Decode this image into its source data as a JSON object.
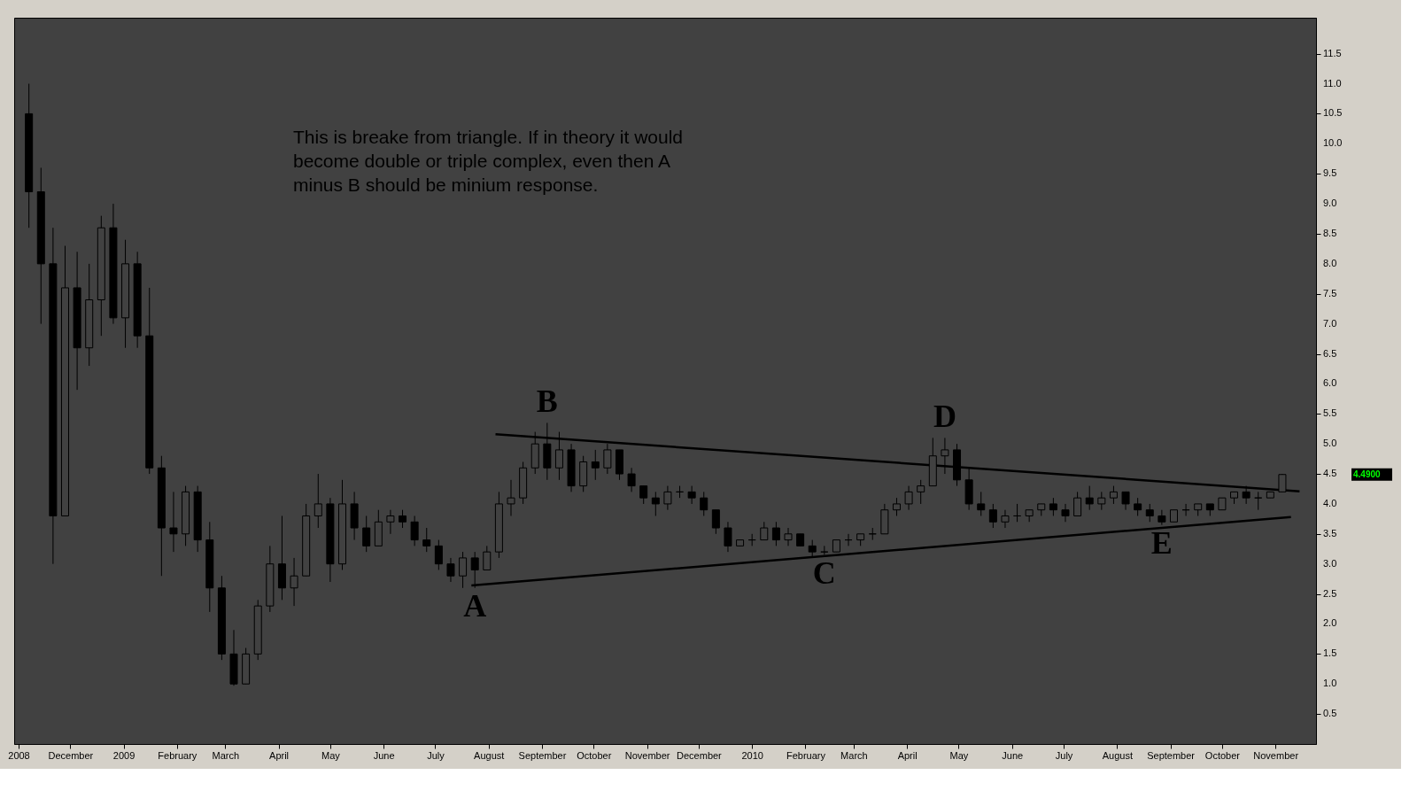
{
  "chart_data": {
    "type": "candlestick",
    "x": [
      "2008-11-07",
      "2008-11-14",
      "2008-11-21",
      "2008-11-28",
      "2008-12-05",
      "2008-12-12",
      "2008-12-19",
      "2008-12-26",
      "2009-01-02",
      "2009-01-09",
      "2009-01-16",
      "2009-01-23",
      "2009-01-30",
      "2009-02-06",
      "2009-02-13",
      "2009-02-20",
      "2009-02-27",
      "2009-03-06",
      "2009-03-13",
      "2009-03-20",
      "2009-03-27",
      "2009-04-03",
      "2009-04-10",
      "2009-04-17",
      "2009-04-24",
      "2009-05-01",
      "2009-05-08",
      "2009-05-15",
      "2009-05-22",
      "2009-05-29",
      "2009-06-05",
      "2009-06-12",
      "2009-06-19",
      "2009-06-26",
      "2009-07-03",
      "2009-07-10",
      "2009-07-17",
      "2009-07-24",
      "2009-07-31",
      "2009-08-07",
      "2009-08-14",
      "2009-08-21",
      "2009-08-28",
      "2009-09-04",
      "2009-09-11",
      "2009-09-18",
      "2009-09-25",
      "2009-10-02",
      "2009-10-09",
      "2009-10-16",
      "2009-10-23",
      "2009-10-30",
      "2009-11-06",
      "2009-11-13",
      "2009-11-20",
      "2009-11-27",
      "2009-12-04",
      "2009-12-11",
      "2009-12-18",
      "2009-12-25",
      "2010-01-01",
      "2010-01-08",
      "2010-01-15",
      "2010-01-22",
      "2010-01-29",
      "2010-02-05",
      "2010-02-12",
      "2010-02-19",
      "2010-02-26",
      "2010-03-05",
      "2010-03-12",
      "2010-03-19",
      "2010-03-26",
      "2010-04-02",
      "2010-04-09",
      "2010-04-16",
      "2010-04-23",
      "2010-04-30",
      "2010-05-07",
      "2010-05-14",
      "2010-05-21",
      "2010-05-28",
      "2010-06-04",
      "2010-06-11",
      "2010-06-18",
      "2010-06-25",
      "2010-07-02",
      "2010-07-09",
      "2010-07-16",
      "2010-07-23",
      "2010-07-30",
      "2010-08-06",
      "2010-08-13",
      "2010-08-20",
      "2010-08-27",
      "2010-09-03",
      "2010-09-10",
      "2010-09-17",
      "2010-09-24",
      "2010-10-01",
      "2010-10-08",
      "2010-10-15",
      "2010-10-22",
      "2010-10-29",
      "2010-11-05"
    ],
    "ohlc": [
      [
        10.5,
        11.0,
        8.6,
        9.2
      ],
      [
        9.2,
        9.6,
        7.0,
        8.0
      ],
      [
        8.0,
        8.6,
        3.0,
        3.8
      ],
      [
        3.8,
        8.3,
        3.8,
        7.6
      ],
      [
        7.6,
        8.2,
        5.9,
        6.6
      ],
      [
        6.6,
        8.0,
        6.3,
        7.4
      ],
      [
        7.4,
        8.8,
        6.8,
        8.6
      ],
      [
        8.6,
        9.0,
        7.0,
        7.1
      ],
      [
        7.1,
        8.4,
        6.6,
        8.0
      ],
      [
        8.0,
        8.2,
        6.6,
        6.8
      ],
      [
        6.8,
        7.6,
        4.5,
        4.6
      ],
      [
        4.6,
        4.8,
        2.8,
        3.6
      ],
      [
        3.6,
        4.2,
        3.2,
        3.5
      ],
      [
        3.5,
        4.3,
        3.3,
        4.2
      ],
      [
        4.2,
        4.3,
        3.2,
        3.4
      ],
      [
        3.4,
        3.7,
        2.2,
        2.6
      ],
      [
        2.6,
        2.8,
        1.4,
        1.5
      ],
      [
        1.5,
        1.9,
        0.97,
        1.0
      ],
      [
        1.0,
        1.6,
        1.0,
        1.5
      ],
      [
        1.5,
        2.4,
        1.4,
        2.3
      ],
      [
        2.3,
        3.3,
        2.2,
        3.0
      ],
      [
        3.0,
        3.8,
        2.4,
        2.6
      ],
      [
        2.6,
        3.1,
        2.3,
        2.8
      ],
      [
        2.8,
        4.0,
        2.8,
        3.8
      ],
      [
        3.8,
        4.5,
        3.6,
        4.0
      ],
      [
        4.0,
        4.1,
        2.7,
        3.0
      ],
      [
        3.0,
        4.4,
        2.9,
        4.0
      ],
      [
        4.0,
        4.2,
        3.4,
        3.6
      ],
      [
        3.6,
        3.8,
        3.2,
        3.3
      ],
      [
        3.3,
        3.9,
        3.3,
        3.7
      ],
      [
        3.7,
        3.9,
        3.5,
        3.8
      ],
      [
        3.8,
        3.9,
        3.6,
        3.7
      ],
      [
        3.7,
        3.8,
        3.3,
        3.4
      ],
      [
        3.4,
        3.6,
        3.2,
        3.3
      ],
      [
        3.3,
        3.4,
        2.9,
        3.0
      ],
      [
        3.0,
        3.1,
        2.7,
        2.8
      ],
      [
        2.8,
        3.2,
        2.6,
        3.1
      ],
      [
        3.1,
        3.2,
        2.6,
        2.9
      ],
      [
        2.9,
        3.3,
        2.9,
        3.2
      ],
      [
        3.2,
        4.2,
        3.1,
        4.0
      ],
      [
        4.0,
        4.4,
        3.8,
        4.1
      ],
      [
        4.1,
        4.7,
        4.0,
        4.6
      ],
      [
        4.6,
        5.2,
        4.5,
        5.0
      ],
      [
        5.0,
        5.35,
        4.4,
        4.6
      ],
      [
        4.6,
        5.2,
        4.4,
        4.9
      ],
      [
        4.9,
        5.0,
        4.2,
        4.3
      ],
      [
        4.3,
        4.8,
        4.2,
        4.7
      ],
      [
        4.7,
        4.9,
        4.4,
        4.6
      ],
      [
        4.6,
        5.0,
        4.5,
        4.9
      ],
      [
        4.9,
        4.9,
        4.4,
        4.5
      ],
      [
        4.5,
        4.6,
        4.2,
        4.3
      ],
      [
        4.3,
        4.3,
        4.0,
        4.1
      ],
      [
        4.1,
        4.2,
        3.8,
        4.0
      ],
      [
        4.0,
        4.3,
        3.9,
        4.2
      ],
      [
        4.2,
        4.3,
        4.1,
        4.2
      ],
      [
        4.2,
        4.3,
        4.0,
        4.1
      ],
      [
        4.1,
        4.2,
        3.8,
        3.9
      ],
      [
        3.9,
        3.9,
        3.5,
        3.6
      ],
      [
        3.6,
        3.7,
        3.2,
        3.3
      ],
      [
        3.3,
        3.4,
        3.3,
        3.4
      ],
      [
        3.4,
        3.5,
        3.3,
        3.4
      ],
      [
        3.4,
        3.7,
        3.4,
        3.6
      ],
      [
        3.6,
        3.7,
        3.3,
        3.4
      ],
      [
        3.4,
        3.6,
        3.3,
        3.5
      ],
      [
        3.5,
        3.5,
        3.3,
        3.3
      ],
      [
        3.3,
        3.4,
        3.1,
        3.2
      ],
      [
        3.2,
        3.3,
        3.15,
        3.2
      ],
      [
        3.2,
        3.4,
        3.2,
        3.4
      ],
      [
        3.4,
        3.5,
        3.3,
        3.4
      ],
      [
        3.4,
        3.5,
        3.3,
        3.5
      ],
      [
        3.5,
        3.6,
        3.4,
        3.5
      ],
      [
        3.5,
        4.0,
        3.5,
        3.9
      ],
      [
        3.9,
        4.1,
        3.8,
        4.0
      ],
      [
        4.0,
        4.3,
        3.9,
        4.2
      ],
      [
        4.2,
        4.4,
        4.0,
        4.3
      ],
      [
        4.3,
        5.1,
        4.3,
        4.8
      ],
      [
        4.8,
        5.1,
        4.5,
        4.9
      ],
      [
        4.9,
        5.0,
        4.3,
        4.4
      ],
      [
        4.4,
        4.6,
        3.9,
        4.0
      ],
      [
        4.0,
        4.2,
        3.8,
        3.9
      ],
      [
        3.9,
        4.0,
        3.6,
        3.7
      ],
      [
        3.7,
        3.9,
        3.6,
        3.8
      ],
      [
        3.8,
        4.0,
        3.7,
        3.8
      ],
      [
        3.8,
        3.9,
        3.7,
        3.9
      ],
      [
        3.9,
        4.0,
        3.8,
        4.0
      ],
      [
        4.0,
        4.1,
        3.8,
        3.9
      ],
      [
        3.9,
        4.0,
        3.7,
        3.8
      ],
      [
        3.8,
        4.2,
        3.8,
        4.1
      ],
      [
        4.1,
        4.3,
        3.9,
        4.0
      ],
      [
        4.0,
        4.2,
        3.9,
        4.1
      ],
      [
        4.1,
        4.3,
        4.0,
        4.2
      ],
      [
        4.2,
        4.2,
        3.9,
        4.0
      ],
      [
        4.0,
        4.1,
        3.8,
        3.9
      ],
      [
        3.9,
        4.0,
        3.7,
        3.8
      ],
      [
        3.8,
        3.9,
        3.65,
        3.7
      ],
      [
        3.7,
        3.9,
        3.7,
        3.9
      ],
      [
        3.9,
        4.0,
        3.8,
        3.9
      ],
      [
        3.9,
        4.0,
        3.8,
        4.0
      ],
      [
        4.0,
        4.0,
        3.8,
        3.9
      ],
      [
        3.9,
        4.1,
        3.9,
        4.1
      ],
      [
        4.1,
        4.2,
        4.0,
        4.2
      ],
      [
        4.2,
        4.3,
        4.0,
        4.1
      ],
      [
        4.1,
        4.2,
        3.9,
        4.1
      ],
      [
        4.1,
        4.2,
        4.1,
        4.2
      ],
      [
        4.2,
        4.5,
        4.2,
        4.49
      ]
    ],
    "series": [
      {
        "type": "line",
        "color": "#000000",
        "x": [
          "2009-08-05",
          "2010-11-15"
        ],
        "values": [
          5.16,
          4.21
        ]
      },
      {
        "type": "line",
        "color": "#000000",
        "x": [
          "2009-07-22",
          "2010-11-10"
        ],
        "values": [
          2.64,
          3.78
        ]
      }
    ],
    "xlim": [
      "2008-11-01",
      "2010-11-22"
    ],
    "xticks": [
      {
        "value": "2008-11-01",
        "label": "2008"
      },
      {
        "value": "2008-12-01",
        "label": "December"
      },
      {
        "value": "2009-01-01",
        "label": "2009"
      },
      {
        "value": "2009-02-01",
        "label": "February"
      },
      {
        "value": "2009-03-01",
        "label": "March"
      },
      {
        "value": "2009-04-01",
        "label": "April"
      },
      {
        "value": "2009-05-01",
        "label": "May"
      },
      {
        "value": "2009-06-01",
        "label": "June"
      },
      {
        "value": "2009-07-01",
        "label": "July"
      },
      {
        "value": "2009-08-01",
        "label": "August"
      },
      {
        "value": "2009-09-01",
        "label": "September"
      },
      {
        "value": "2009-10-01",
        "label": "October"
      },
      {
        "value": "2009-11-01",
        "label": "November"
      },
      {
        "value": "2009-12-01",
        "label": "December"
      },
      {
        "value": "2010-01-01",
        "label": "2010"
      },
      {
        "value": "2010-02-01",
        "label": "February"
      },
      {
        "value": "2010-03-01",
        "label": "March"
      },
      {
        "value": "2010-04-01",
        "label": "April"
      },
      {
        "value": "2010-05-01",
        "label": "May"
      },
      {
        "value": "2010-06-01",
        "label": "June"
      },
      {
        "value": "2010-07-01",
        "label": "July"
      },
      {
        "value": "2010-08-01",
        "label": "August"
      },
      {
        "value": "2010-09-01",
        "label": "September"
      },
      {
        "value": "2010-10-01",
        "label": "October"
      },
      {
        "value": "2010-11-01",
        "label": "November"
      }
    ],
    "ylim": [
      0,
      12.1
    ],
    "yticks": [
      {
        "value": 0.5,
        "label": "0.5"
      },
      {
        "value": 1,
        "label": "1.0"
      },
      {
        "value": 1.5,
        "label": "1.5"
      },
      {
        "value": 2,
        "label": "2.0"
      },
      {
        "value": 2.5,
        "label": "2.5"
      },
      {
        "value": 3,
        "label": "3.0"
      },
      {
        "value": 3.5,
        "label": "3.5"
      },
      {
        "value": 4,
        "label": "4.0"
      },
      {
        "value": 4.5,
        "label": "4.5"
      },
      {
        "value": 5,
        "label": "5.0"
      },
      {
        "value": 5.5,
        "label": "5.5"
      },
      {
        "value": 6,
        "label": "6.0"
      },
      {
        "value": 6.5,
        "label": "6.5"
      },
      {
        "value": 7,
        "label": "7.0"
      },
      {
        "value": 7.5,
        "label": "7.5"
      },
      {
        "value": 8,
        "label": "8.0"
      },
      {
        "value": 8.5,
        "label": "8.5"
      },
      {
        "value": 9,
        "label": "9.0"
      },
      {
        "value": 9.5,
        "label": "9.5"
      },
      {
        "value": 10,
        "label": "10.0"
      },
      {
        "value": 10.5,
        "label": "10.5"
      },
      {
        "value": 11,
        "label": "11.0"
      },
      {
        "value": 11.5,
        "label": "11.5"
      }
    ],
    "grid": false,
    "annotations": [
      "This is breake from triangle. If in theory it would\nbecome double or triple complex, even then A\nminus B should be minium response.",
      {
        "text": "A",
        "x": "2009-07-24",
        "y": 2.6
      },
      {
        "text": "B",
        "x": "2009-09-04",
        "y": 5.35
      },
      {
        "text": "C",
        "x": "2010-02-12",
        "y": 3.15
      },
      {
        "text": "D",
        "x": "2010-04-23",
        "y": 5.1
      },
      {
        "text": "E",
        "x": "2010-08-27",
        "y": 3.65
      },
      "4.4900"
    ]
  }
}
